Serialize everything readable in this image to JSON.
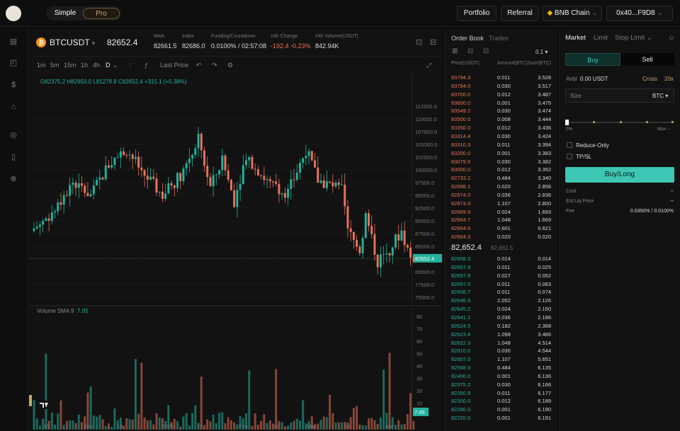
{
  "header": {
    "mode_simple": "Simple",
    "mode_pro": "Pro",
    "portfolio": "Portfolio",
    "referral": "Referral",
    "chain": "BNB Chain",
    "wallet": "0x40...F9D8"
  },
  "ticker": {
    "symbol": "BTCUSDT",
    "last": "82652.4",
    "stats": [
      {
        "label": "Mark",
        "value": "82661.5"
      },
      {
        "label": "Index",
        "value": "82686.0"
      },
      {
        "label": "Funding/Countdown",
        "value": "0.0100% / 02:57:08"
      },
      {
        "label": "24h Change",
        "value": "-192.4 -0.23%"
      },
      {
        "label": "24h Volume(USDT)",
        "value": "842.94K"
      }
    ]
  },
  "toolbar": {
    "intervals": [
      "1m",
      "5m",
      "15m",
      "1h",
      "4h",
      "D"
    ],
    "price_type": "Last Price"
  },
  "chart": {
    "ohlc": "O82375.2  H82950.0  L81279.8  C82652.4  +315.1 (+0.38%)",
    "volume_label": "Volume SMA 9",
    "volume_value": "7.05",
    "price_ticks": [
      "112500.0",
      "110000.0",
      "107500.0",
      "105000.0",
      "102500.0",
      "100000.0",
      "97500.0",
      "95000.0",
      "92500.0",
      "90000.0",
      "87500.0",
      "85000.0",
      "82500.0",
      "80000.0",
      "77500.0",
      "75000.0"
    ],
    "vol_ticks": [
      "80",
      "70",
      "60",
      "50",
      "40",
      "30",
      "20",
      "10"
    ],
    "current_price_tag": "82652.4",
    "volume_tag": "7.05",
    "x_ticks": [
      "15",
      "Dec",
      "15",
      "2025",
      "15",
      "Feb",
      "15",
      "Mar",
      "15",
      "Apr"
    ],
    "colors": {
      "up": "#21b39c",
      "down": "#e8735a"
    }
  },
  "chart_data": {
    "type": "candlestick",
    "x": [
      "15",
      "Dec",
      "15",
      "2025",
      "15",
      "Feb",
      "15",
      "Mar",
      "15",
      "Apr"
    ],
    "ylim": [
      75000,
      112500
    ]
  },
  "orderbook": {
    "title": "Order Book",
    "trades": "Trades",
    "tick": "0.1",
    "headers": [
      "Price(USDT)",
      "Amount(BTC)",
      "Sum(BTC)"
    ],
    "asks": [
      [
        "83794.3",
        "0.011",
        "3.528"
      ],
      [
        "83784.0",
        "0.030",
        "3.517"
      ],
      [
        "83700.0",
        "0.012",
        "3.487"
      ],
      [
        "83600.0",
        "0.001",
        "3.475"
      ],
      [
        "83549.2",
        "0.030",
        "3.474"
      ],
      [
        "83500.0",
        "0.008",
        "3.444"
      ],
      [
        "83350.0",
        "0.012",
        "3.436"
      ],
      [
        "83314.4",
        "0.030",
        "3.424"
      ],
      [
        "83310.3",
        "0.011",
        "3.394"
      ],
      [
        "83200.0",
        "0.001",
        "3.383"
      ],
      [
        "83079.6",
        "0.030",
        "3.382"
      ],
      [
        "83000.0",
        "0.012",
        "3.352"
      ],
      [
        "82733.2",
        "0.484",
        "3.340"
      ],
      [
        "82698.1",
        "0.020",
        "2.856"
      ],
      [
        "82674.0",
        "0.036",
        "2.836"
      ],
      [
        "82673.3",
        "1.107",
        "2.800"
      ],
      [
        "82669.9",
        "0.024",
        "1.693"
      ],
      [
        "82664.7",
        "1.048",
        "1.669"
      ],
      [
        "82664.6",
        "0.601",
        "0.621"
      ],
      [
        "82664.3",
        "0.020",
        "0.020"
      ]
    ],
    "mid": "82,652.4",
    "mid_sub": "82,661.5",
    "bids": [
      [
        "82658.3",
        "0.014",
        "0.014"
      ],
      [
        "82657.9",
        "0.011",
        "0.025"
      ],
      [
        "82657.8",
        "0.027",
        "0.052"
      ],
      [
        "82657.0",
        "0.011",
        "0.063"
      ],
      [
        "82656.7",
        "0.011",
        "0.074"
      ],
      [
        "82646.9",
        "2.052",
        "2.126"
      ],
      [
        "82645.2",
        "0.024",
        "2.150"
      ],
      [
        "82641.1",
        "0.036",
        "2.186"
      ],
      [
        "82624.5",
        "0.182",
        "2.368"
      ],
      [
        "82623.4",
        "1.098",
        "3.466"
      ],
      [
        "82622.3",
        "1.048",
        "4.514"
      ],
      [
        "82610.0",
        "0.030",
        "4.544"
      ],
      [
        "82607.0",
        "1.107",
        "5.651"
      ],
      [
        "82568.0",
        "0.484",
        "6.135"
      ],
      [
        "82400.0",
        "0.001",
        "6.136"
      ],
      [
        "82375.2",
        "0.030",
        "6.166"
      ],
      [
        "82350.8",
        "0.011",
        "6.177"
      ],
      [
        "82300.0",
        "0.012",
        "6.189"
      ],
      [
        "82280.0",
        "0.001",
        "6.190"
      ],
      [
        "82220.0",
        "0.001",
        "6.191"
      ]
    ]
  },
  "trade": {
    "tabs": [
      "Market",
      "Limit",
      "Stop Limit"
    ],
    "buy": "Buy",
    "sell": "Sell",
    "avbl_label": "Avbl",
    "avbl_value": "0.00 USDT",
    "margin": "Cross",
    "leverage": "20x",
    "size_label": "Size",
    "size_unit": "BTC",
    "slider_min": "0%",
    "slider_max": "Max",
    "slider_max_val": "--",
    "reduce_only": "Reduce-Only",
    "tpsl": "TP/SL",
    "submit": "Buy/Long",
    "info": [
      {
        "label": "Cost",
        "value": "--"
      },
      {
        "label": "Est.Liq Price",
        "value": "--"
      },
      {
        "label": "Fee",
        "value": "0.0350% / 0.0100%"
      }
    ]
  }
}
